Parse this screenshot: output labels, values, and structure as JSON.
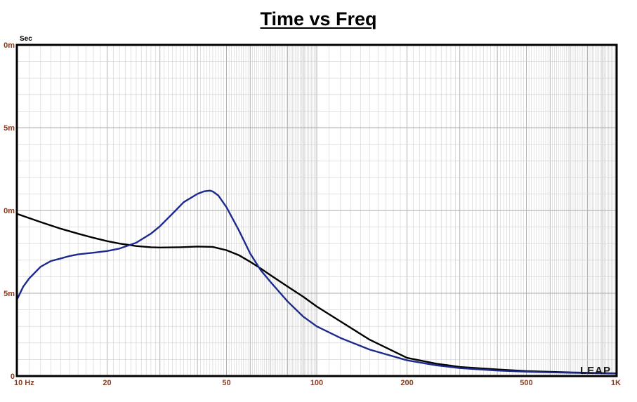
{
  "chart_data": {
    "type": "line",
    "title": "Time vs Freq",
    "ylabel": "Sec",
    "x_scale": "log",
    "xlim": [
      10,
      1000
    ],
    "ylim": [
      0,
      20
    ],
    "x_ticks": [
      {
        "value": 10,
        "label": "10  Hz"
      },
      {
        "value": 20,
        "label": "20"
      },
      {
        "value": 50,
        "label": "50"
      },
      {
        "value": 100,
        "label": "100"
      },
      {
        "value": 200,
        "label": "200"
      },
      {
        "value": 500,
        "label": "500"
      },
      {
        "value": 1000,
        "label": "1K"
      }
    ],
    "y_ticks": [
      {
        "value": 20,
        "label": "0m"
      },
      {
        "value": 15,
        "label": "5m"
      },
      {
        "value": 10,
        "label": "0m"
      },
      {
        "value": 5,
        "label": "5m"
      },
      {
        "value": 0,
        "label": "0"
      }
    ],
    "grid": true,
    "series": [
      {
        "color": "#000000",
        "x": [
          10,
          12,
          14,
          16,
          18,
          20,
          22,
          25,
          28,
          30,
          35,
          40,
          45,
          50,
          55,
          60,
          65,
          70,
          80,
          90,
          100,
          120,
          150,
          200,
          250,
          300,
          400,
          500,
          700,
          1000
        ],
        "y": [
          9.8,
          9.3,
          8.9,
          8.6,
          8.35,
          8.15,
          8.0,
          7.85,
          7.78,
          7.76,
          7.78,
          7.82,
          7.8,
          7.6,
          7.3,
          6.9,
          6.5,
          6.1,
          5.4,
          4.8,
          4.2,
          3.3,
          2.2,
          1.1,
          0.75,
          0.55,
          0.4,
          0.3,
          0.22,
          0.16
        ]
      },
      {
        "color": "#1c2a8c",
        "x": [
          10,
          10.5,
          11,
          12,
          13,
          14,
          15,
          16,
          18,
          20,
          22,
          25,
          28,
          30,
          33,
          36,
          40,
          42,
          44,
          45,
          47,
          50,
          55,
          60,
          65,
          70,
          80,
          90,
          100,
          120,
          150,
          200,
          250,
          300,
          400,
          500,
          700,
          1000
        ],
        "y": [
          4.6,
          5.4,
          5.9,
          6.6,
          6.95,
          7.1,
          7.25,
          7.35,
          7.45,
          7.55,
          7.7,
          8.05,
          8.6,
          9.05,
          9.8,
          10.5,
          11.0,
          11.15,
          11.2,
          11.15,
          10.9,
          10.2,
          8.8,
          7.4,
          6.4,
          5.7,
          4.5,
          3.6,
          3.0,
          2.3,
          1.6,
          0.95,
          0.65,
          0.48,
          0.33,
          0.26,
          0.2,
          0.15
        ]
      }
    ]
  },
  "watermark": "LEAP"
}
